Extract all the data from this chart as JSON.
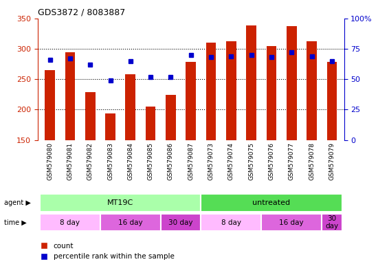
{
  "title": "GDS3872 / 8083887",
  "samples": [
    "GSM579080",
    "GSM579081",
    "GSM579082",
    "GSM579083",
    "GSM579084",
    "GSM579085",
    "GSM579086",
    "GSM579087",
    "GSM579073",
    "GSM579074",
    "GSM579075",
    "GSM579076",
    "GSM579077",
    "GSM579078",
    "GSM579079"
  ],
  "count_values": [
    265,
    294,
    229,
    194,
    258,
    205,
    224,
    278,
    310,
    312,
    338,
    305,
    337,
    312,
    278
  ],
  "percentile_values": [
    66,
    67,
    62,
    49,
    65,
    52,
    52,
    70,
    68,
    69,
    70,
    68,
    72,
    69,
    65
  ],
  "y_min": 150,
  "y_max": 350,
  "y_ticks": [
    150,
    200,
    250,
    300,
    350
  ],
  "y2_ticks": [
    0,
    25,
    50,
    75,
    100
  ],
  "bar_color": "#CC2200",
  "dot_color": "#0000CC",
  "bar_width": 0.5,
  "agent_groups": [
    {
      "label": "MT19C",
      "start": 0,
      "end": 8,
      "color": "#AAFFAA"
    },
    {
      "label": "untreated",
      "start": 8,
      "end": 15,
      "color": "#55DD55"
    }
  ],
  "time_groups": [
    {
      "label": "8 day",
      "start": 0,
      "end": 3,
      "color": "#FFBBFF"
    },
    {
      "label": "16 day",
      "start": 3,
      "end": 6,
      "color": "#DD66DD"
    },
    {
      "label": "30 day",
      "start": 6,
      "end": 8,
      "color": "#CC44CC"
    },
    {
      "label": "8 day",
      "start": 8,
      "end": 11,
      "color": "#FFBBFF"
    },
    {
      "label": "16 day",
      "start": 11,
      "end": 14,
      "color": "#DD66DD"
    },
    {
      "label": "30\nday",
      "start": 14,
      "end": 15,
      "color": "#CC44CC"
    }
  ],
  "bg_color": "#FFFFFF",
  "tick_label_color_left": "#CC2200",
  "tick_label_color_right": "#0000CC",
  "label_area_color": "#DDDDDD"
}
